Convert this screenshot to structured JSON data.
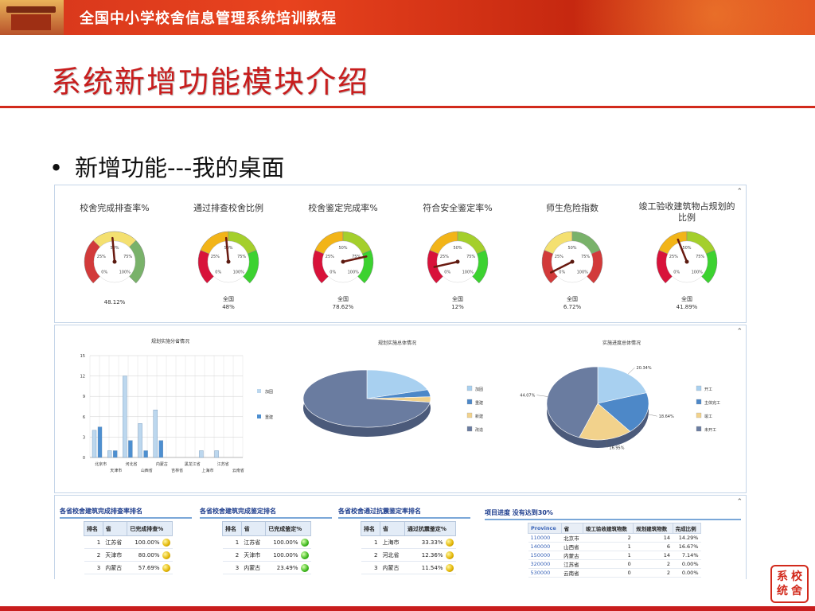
{
  "header": {
    "title": "全国中小学校舍信息管理系统培训教程"
  },
  "page_title": "系统新增功能模块介绍",
  "bullet": {
    "text": "新增功能---我的桌面"
  },
  "collapse_icon": "⌃",
  "gauges": [
    {
      "title": "校舍完成排查率%",
      "scope": "",
      "value_text": "48.12%",
      "value": 48.12
    },
    {
      "title": "通过排查校舍比例",
      "scope": "全国",
      "value_text": "48%",
      "value": 48
    },
    {
      "title": "校舍鉴定完成率%",
      "scope": "全国",
      "value_text": "78.62%",
      "value": 78.62
    },
    {
      "title": "符合安全鉴定率%",
      "scope": "全国",
      "value_text": "12%",
      "value": 12
    },
    {
      "title": "师生危险指数",
      "scope": "全国",
      "value_text": "6.72%",
      "value": 6.72
    },
    {
      "title": "竣工验收建筑物占规划的比例",
      "scope": "全国",
      "value_text": "41.89%",
      "value": 41.89
    }
  ],
  "gauge_ticks": [
    "0%",
    "25%",
    "50%",
    "75%",
    "100%"
  ],
  "chart_data": [
    {
      "type": "bar",
      "title": "规划实施分省情况",
      "categories": [
        "北京市",
        "天津市",
        "河北省",
        "山西省",
        "内蒙古",
        "吉林省",
        "黑龙江省",
        "上海市",
        "江苏省",
        "云南省"
      ],
      "x_labels_upper": [
        "北京市",
        "河北省",
        "内蒙古",
        "黑龙江省",
        "江苏省"
      ],
      "x_labels_lower": [
        "天津市",
        "山西省",
        "吉林省",
        "上海市",
        "云南省"
      ],
      "series": [
        {
          "name": "加固",
          "values": [
            4,
            1,
            12,
            5,
            7,
            0,
            0,
            1,
            1,
            0
          ],
          "color": "#bcd7ee"
        },
        {
          "name": "重建",
          "values": [
            4.5,
            1,
            2.5,
            1,
            2.5,
            0,
            0,
            0,
            0,
            0
          ],
          "color": "#4d8fd0"
        }
      ],
      "ylim": [
        0,
        15
      ],
      "yticks": [
        "0",
        "3",
        "6",
        "9",
        "12",
        "15"
      ]
    },
    {
      "type": "pie",
      "title": "规划实施总体情况",
      "slices": [
        {
          "label": "加固",
          "value": 20,
          "color": "#a8d0f0"
        },
        {
          "label": "重建",
          "value": 4,
          "color": "#4d88c8"
        },
        {
          "label": "新建",
          "value": 3,
          "color": "#f2d28c"
        },
        {
          "label": "改造",
          "value": 73,
          "color": "#6a7ca0"
        }
      ]
    },
    {
      "type": "pie",
      "title": "实施进度总体情况",
      "slices": [
        {
          "label": "开工",
          "value": 20.34,
          "text": "20.34%",
          "color": "#a8d0f0"
        },
        {
          "label": "主体完工",
          "value": 18.64,
          "text": "18.64%",
          "color": "#4d88c8"
        },
        {
          "label": "竣工",
          "value": 16.95,
          "text": "16.95%",
          "color": "#f2d28c"
        },
        {
          "label": "未开工",
          "value": 44.07,
          "text": "44.07%",
          "color": "#6a7ca0"
        }
      ]
    }
  ],
  "rankings": [
    {
      "title": "各省校舍建筑完成排查率排名",
      "headers": [
        "排名",
        "省",
        "已完成排查%"
      ],
      "rows": [
        {
          "rank": "1",
          "province": "江苏省",
          "value": "100.00%",
          "ball": "y"
        },
        {
          "rank": "2",
          "province": "天津市",
          "value": "80.00%",
          "ball": "y"
        },
        {
          "rank": "3",
          "province": "内蒙古",
          "value": "57.69%",
          "ball": "y"
        }
      ]
    },
    {
      "title": "各省校舍建筑完成鉴定排名",
      "headers": [
        "排名",
        "省",
        "已完成鉴定%"
      ],
      "rows": [
        {
          "rank": "1",
          "province": "江苏省",
          "value": "100.00%",
          "ball": "g"
        },
        {
          "rank": "2",
          "province": "天津市",
          "value": "100.00%",
          "ball": "g"
        },
        {
          "rank": "3",
          "province": "内蒙古",
          "value": "23.49%",
          "ball": "g"
        }
      ]
    },
    {
      "title": "各省校舍通过抗震鉴定率排名",
      "headers": [
        "排名",
        "省",
        "通过抗震鉴定%"
      ],
      "rows": [
        {
          "rank": "1",
          "province": "上海市",
          "value": "33.33%",
          "ball": "y"
        },
        {
          "rank": "2",
          "province": "河北省",
          "value": "12.36%",
          "ball": "y"
        },
        {
          "rank": "3",
          "province": "内蒙古",
          "value": "11.54%",
          "ball": "y"
        }
      ]
    }
  ],
  "progress": {
    "title": "项目进度 没有达到30%",
    "headers": [
      "Province",
      "省",
      "竣工验收建筑物数",
      "规划建筑物数",
      "完成比例"
    ],
    "rows": [
      [
        "110000",
        "北京市",
        "2",
        "14",
        "14.29%"
      ],
      [
        "140000",
        "山西省",
        "1",
        "6",
        "16.67%"
      ],
      [
        "150000",
        "内蒙古",
        "1",
        "14",
        "7.14%"
      ],
      [
        "320000",
        "江苏省",
        "0",
        "2",
        "0.00%"
      ],
      [
        "530000",
        "云南省",
        "0",
        "2",
        "0.00%"
      ]
    ]
  },
  "stamp": [
    "系",
    "校",
    "统",
    "舍"
  ]
}
